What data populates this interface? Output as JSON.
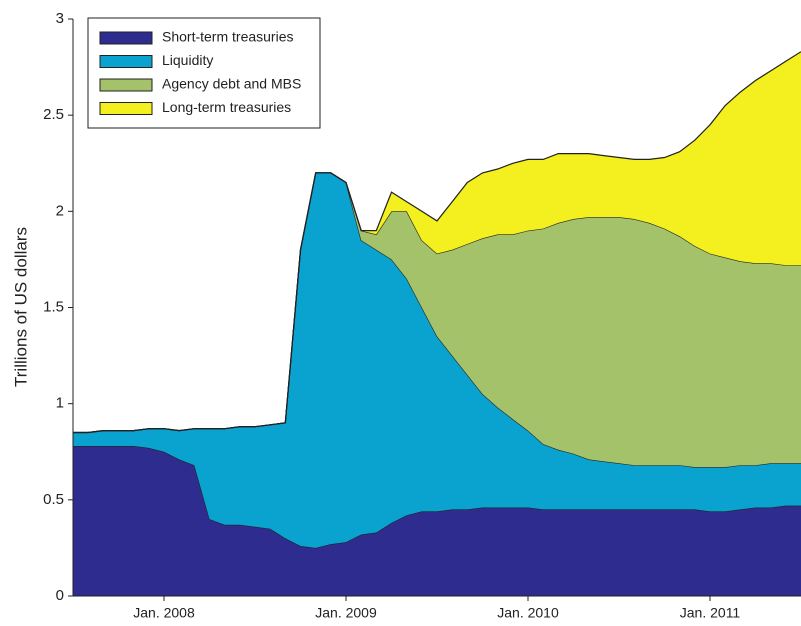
{
  "chart_data": {
    "type": "stacked-area",
    "ylabel": "Trillions of US dollars",
    "categories": [
      null,
      null,
      null,
      null,
      null,
      null,
      "Jan. 2008",
      null,
      null,
      null,
      null,
      null,
      null,
      null,
      null,
      null,
      null,
      null,
      "Jan. 2009",
      null,
      null,
      null,
      null,
      null,
      null,
      null,
      null,
      null,
      null,
      null,
      "Jan. 2010",
      null,
      null,
      null,
      null,
      null,
      null,
      null,
      null,
      null,
      null,
      null,
      "Jan. 2011",
      null,
      null,
      null,
      null,
      null,
      null
    ],
    "ylim": [
      0,
      3
    ],
    "yticks": [
      0,
      0.5,
      1,
      1.5,
      2,
      2.5,
      3
    ],
    "legend": "upper left",
    "series": [
      {
        "name": "Short-term treasuries",
        "color": "#2e2d8f",
        "values": [
          0.78,
          0.78,
          0.78,
          0.78,
          0.78,
          0.77,
          0.75,
          0.71,
          0.68,
          0.4,
          0.37,
          0.37,
          0.36,
          0.35,
          0.3,
          0.26,
          0.25,
          0.27,
          0.28,
          0.32,
          0.33,
          0.38,
          0.42,
          0.44,
          0.44,
          0.45,
          0.45,
          0.46,
          0.46,
          0.46,
          0.46,
          0.45,
          0.45,
          0.45,
          0.45,
          0.45,
          0.45,
          0.45,
          0.45,
          0.45,
          0.45,
          0.45,
          0.44,
          0.44,
          0.45,
          0.46,
          0.46,
          0.47,
          0.47
        ]
      },
      {
        "name": "Liquidity",
        "color": "#0aa3cf",
        "values": [
          0.07,
          0.07,
          0.08,
          0.08,
          0.08,
          0.1,
          0.12,
          0.15,
          0.19,
          0.47,
          0.5,
          0.51,
          0.52,
          0.54,
          0.6,
          1.54,
          1.95,
          1.93,
          1.87,
          1.53,
          1.47,
          1.37,
          1.23,
          1.06,
          0.91,
          0.8,
          0.7,
          0.59,
          0.52,
          0.46,
          0.4,
          0.34,
          0.31,
          0.29,
          0.26,
          0.25,
          0.24,
          0.23,
          0.23,
          0.23,
          0.23,
          0.22,
          0.23,
          0.23,
          0.23,
          0.22,
          0.23,
          0.22,
          0.22
        ]
      },
      {
        "name": "Agency debt and MBS",
        "color": "#a3c26a",
        "values": [
          0,
          0,
          0,
          0,
          0,
          0,
          0,
          0,
          0,
          0,
          0,
          0,
          0,
          0,
          0,
          0,
          0,
          0,
          0,
          0.05,
          0.08,
          0.25,
          0.35,
          0.35,
          0.43,
          0.55,
          0.68,
          0.81,
          0.9,
          0.96,
          1.04,
          1.12,
          1.18,
          1.22,
          1.26,
          1.27,
          1.28,
          1.28,
          1.26,
          1.23,
          1.19,
          1.15,
          1.11,
          1.09,
          1.06,
          1.05,
          1.04,
          1.03,
          1.03
        ]
      },
      {
        "name": "Long-term treasuries",
        "color": "#f4ef1f",
        "values": [
          0,
          0,
          0,
          0,
          0,
          0,
          0,
          0,
          0,
          0,
          0,
          0,
          0,
          0,
          0,
          0,
          0,
          0,
          0,
          0,
          0.02,
          0.1,
          0.05,
          0.15,
          0.17,
          0.25,
          0.32,
          0.34,
          0.34,
          0.37,
          0.37,
          0.36,
          0.36,
          0.34,
          0.33,
          0.32,
          0.31,
          0.31,
          0.33,
          0.37,
          0.44,
          0.55,
          0.67,
          0.79,
          0.88,
          0.95,
          1.0,
          1.06,
          1.11
        ]
      }
    ]
  }
}
